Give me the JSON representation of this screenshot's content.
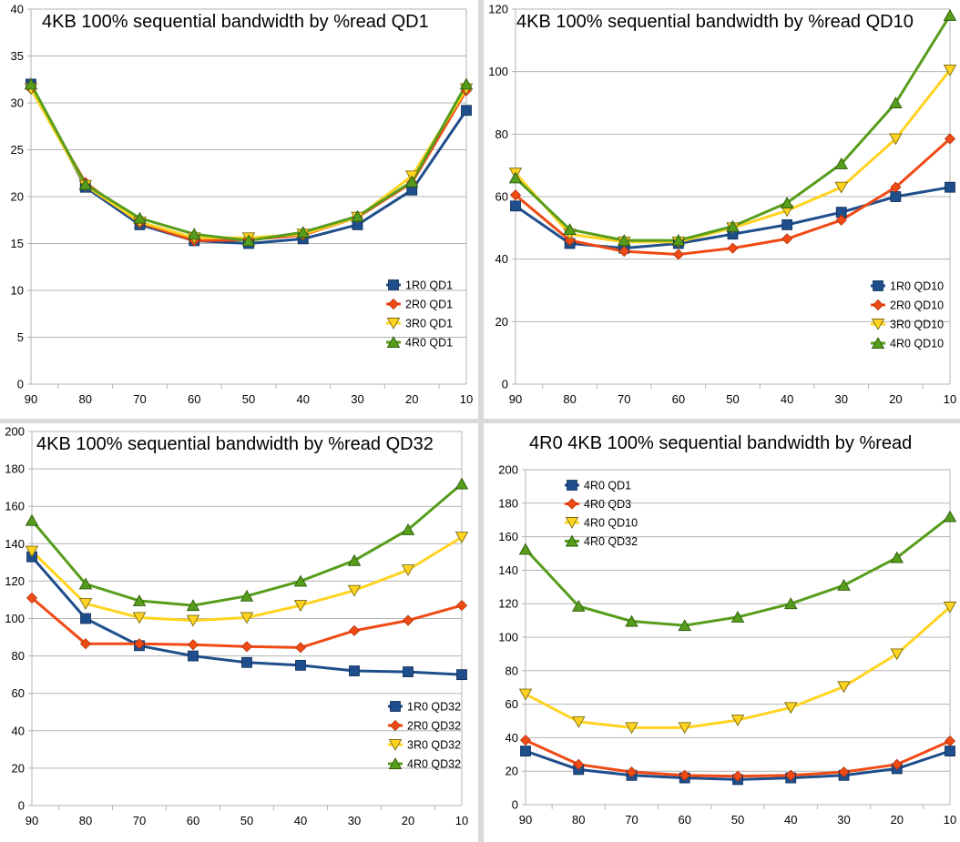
{
  "chart_data": [
    {
      "type": "line",
      "title": "4KB 100% sequential bandwidth by %read QD1",
      "categories": [
        "90",
        "80",
        "70",
        "60",
        "50",
        "40",
        "30",
        "20",
        "10"
      ],
      "ylim": [
        0,
        40
      ],
      "yticks": [
        0,
        5,
        10,
        15,
        20,
        25,
        30,
        35,
        40
      ],
      "grid": "horizontal",
      "legend": "bottom-right",
      "series": [
        {
          "name": "1R0 QD1",
          "color": "#1f4e8c",
          "marker": "square",
          "values": [
            32,
            21,
            17,
            15.3,
            15,
            15.5,
            17,
            20.7,
            29.2
          ]
        },
        {
          "name": "2R0 QD1",
          "color": "#f04a15",
          "marker": "diamond",
          "values": [
            31.5,
            21.5,
            17.2,
            15.3,
            15.4,
            15.9,
            17.8,
            21.5,
            31.3
          ]
        },
        {
          "name": "3R0 QD1",
          "color": "#ffd320",
          "marker": "triangle-down",
          "values": [
            31.5,
            21.2,
            17.3,
            15.6,
            15.6,
            16,
            17.8,
            22.2,
            31.5
          ]
        },
        {
          "name": "4R0 QD1",
          "color": "#579d1c",
          "marker": "triangle-up",
          "values": [
            32,
            21.3,
            17.7,
            16,
            15.3,
            16.2,
            17.9,
            21.6,
            32
          ]
        }
      ]
    },
    {
      "type": "line",
      "title": "4KB 100% sequential bandwidth by %read QD10",
      "categories": [
        "90",
        "80",
        "70",
        "60",
        "50",
        "40",
        "30",
        "20",
        "10"
      ],
      "ylim": [
        0,
        120
      ],
      "yticks": [
        0,
        20,
        40,
        60,
        80,
        100,
        120
      ],
      "grid": "horizontal",
      "legend": "bottom-right",
      "series": [
        {
          "name": "1R0 QD10",
          "color": "#1f4e8c",
          "marker": "square",
          "values": [
            57,
            45,
            43.5,
            45,
            48,
            51,
            55,
            60,
            63
          ]
        },
        {
          "name": "2R0 QD10",
          "color": "#f04a15",
          "marker": "diamond",
          "values": [
            60.5,
            46,
            42.5,
            41.5,
            43.5,
            46.5,
            52.5,
            63,
            78.5
          ]
        },
        {
          "name": "3R0 QD10",
          "color": "#ffd320",
          "marker": "triangle-down",
          "values": [
            67.5,
            48,
            45.5,
            45.5,
            50,
            55.5,
            63,
            78.5,
            100.5
          ]
        },
        {
          "name": "4R0 QD10",
          "color": "#579d1c",
          "marker": "triangle-up",
          "values": [
            66,
            49.5,
            46,
            46,
            50.5,
            58,
            70.5,
            90,
            118
          ]
        }
      ]
    },
    {
      "type": "line",
      "title": "4KB 100% sequential bandwidth by %read QD32",
      "categories": [
        "90",
        "80",
        "70",
        "60",
        "50",
        "40",
        "30",
        "20",
        "10"
      ],
      "ylim": [
        0,
        200
      ],
      "yticks": [
        0,
        20,
        40,
        60,
        80,
        100,
        120,
        140,
        160,
        180,
        200
      ],
      "grid": "horizontal",
      "legend": "bottom-right",
      "series": [
        {
          "name": "1R0 QD32",
          "color": "#1f4e8c",
          "marker": "square",
          "values": [
            133,
            100,
            85.5,
            80,
            76.5,
            75,
            72,
            71.5,
            70
          ]
        },
        {
          "name": "2R0 QD32",
          "color": "#f04a15",
          "marker": "diamond",
          "values": [
            111,
            86.5,
            86.5,
            86,
            85,
            84.5,
            93.5,
            99,
            107
          ]
        },
        {
          "name": "3R0 QD32",
          "color": "#ffd320",
          "marker": "triangle-down",
          "values": [
            136,
            108,
            100.5,
            99,
            100.5,
            107,
            115,
            126,
            143.5
          ]
        },
        {
          "name": "4R0 QD32",
          "color": "#579d1c",
          "marker": "triangle-up",
          "values": [
            152.5,
            118.5,
            109.5,
            107,
            112,
            120,
            131,
            147.5,
            172
          ]
        }
      ]
    },
    {
      "type": "line",
      "title": "4R0 4KB 100% sequential bandwidth by %read",
      "categories": [
        "90",
        "80",
        "70",
        "60",
        "50",
        "40",
        "30",
        "20",
        "10"
      ],
      "ylim": [
        0,
        200
      ],
      "yticks": [
        0,
        20,
        40,
        60,
        80,
        100,
        120,
        140,
        160,
        180,
        200
      ],
      "grid": "horizontal",
      "legend": "top-left",
      "series": [
        {
          "name": "4R0 QD1",
          "color": "#1f4e8c",
          "marker": "square",
          "values": [
            32,
            21,
            17.5,
            16,
            15,
            16,
            17.5,
            21.5,
            32
          ]
        },
        {
          "name": "4R0 QD3",
          "color": "#f04a15",
          "marker": "diamond",
          "values": [
            38.5,
            24,
            19.5,
            17.5,
            17,
            17.5,
            19.5,
            24,
            38
          ]
        },
        {
          "name": "4R0 QD10",
          "color": "#ffd320",
          "marker": "triangle-down",
          "values": [
            66,
            49.5,
            46,
            46,
            50.5,
            58,
            70.5,
            90,
            118
          ]
        },
        {
          "name": "4R0 QD32",
          "color": "#579d1c",
          "marker": "triangle-up",
          "values": [
            152.5,
            118.5,
            109.5,
            107,
            112,
            120,
            131,
            147.5,
            172
          ]
        }
      ]
    }
  ]
}
